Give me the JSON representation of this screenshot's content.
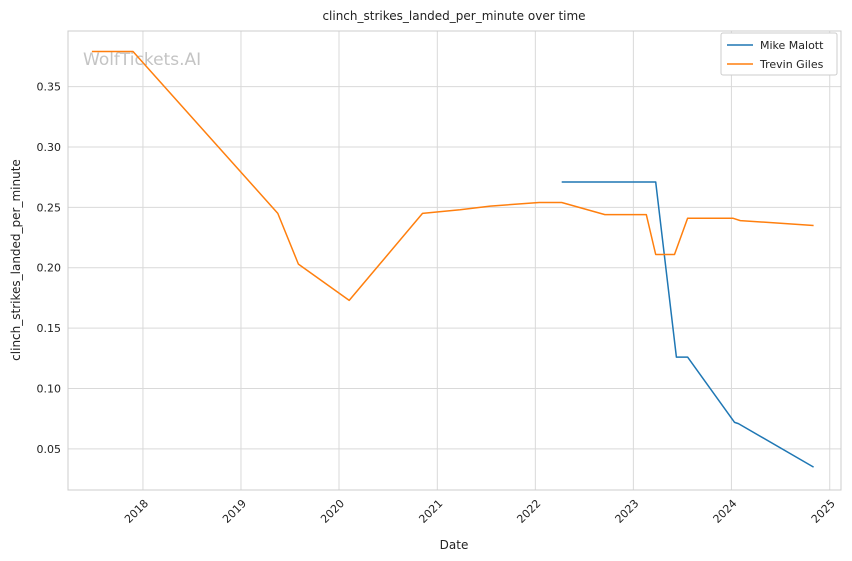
{
  "watermark": "WolfTickets.AI",
  "chart_data": {
    "type": "line",
    "title": "clinch_strikes_landed_per_minute over time",
    "xlabel": "Date",
    "ylabel": "clinch_strikes_landed_per_minute",
    "x_ticks": [
      "2018",
      "2019",
      "2020",
      "2021",
      "2022",
      "2023",
      "2024",
      "2025"
    ],
    "y_ticks": [
      "0.05",
      "0.10",
      "0.15",
      "0.20",
      "0.25",
      "0.30",
      "0.35"
    ],
    "xlim": [
      "2017-03-28",
      "2025-02-12"
    ],
    "ylim": [
      0.016,
      0.396
    ],
    "grid": true,
    "legend_position": "top-right",
    "series": [
      {
        "name": "Mike Malott",
        "color": "#1f77b4",
        "points": [
          {
            "x": "2022-04-09",
            "y": 0.271
          },
          {
            "x": "2023-03-25",
            "y": 0.271
          },
          {
            "x": "2023-06-10",
            "y": 0.126
          },
          {
            "x": "2023-07-22",
            "y": 0.126
          },
          {
            "x": "2024-01-13",
            "y": 0.072
          },
          {
            "x": "2024-01-27",
            "y": 0.071
          },
          {
            "x": "2024-11-02",
            "y": 0.035
          }
        ]
      },
      {
        "name": "Trevin Giles",
        "color": "#ff7f0e",
        "points": [
          {
            "x": "2017-06-25",
            "y": 0.379
          },
          {
            "x": "2017-11-25",
            "y": 0.379
          },
          {
            "x": "2019-05-18",
            "y": 0.245
          },
          {
            "x": "2019-08-03",
            "y": 0.203
          },
          {
            "x": "2020-02-08",
            "y": 0.173
          },
          {
            "x": "2020-11-07",
            "y": 0.245
          },
          {
            "x": "2021-03-27",
            "y": 0.248
          },
          {
            "x": "2021-07-17",
            "y": 0.251
          },
          {
            "x": "2022-01-15",
            "y": 0.254
          },
          {
            "x": "2022-04-09",
            "y": 0.254
          },
          {
            "x": "2022-09-17",
            "y": 0.244
          },
          {
            "x": "2023-02-18",
            "y": 0.244
          },
          {
            "x": "2023-03-25",
            "y": 0.211
          },
          {
            "x": "2023-06-03",
            "y": 0.211
          },
          {
            "x": "2023-07-22",
            "y": 0.241
          },
          {
            "x": "2024-01-06",
            "y": 0.241
          },
          {
            "x": "2024-02-03",
            "y": 0.239
          },
          {
            "x": "2024-11-02",
            "y": 0.235
          }
        ]
      }
    ]
  }
}
